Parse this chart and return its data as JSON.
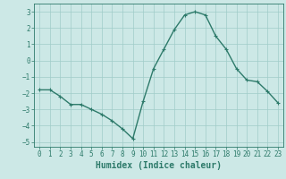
{
  "x": [
    0,
    1,
    2,
    3,
    4,
    5,
    6,
    7,
    8,
    9,
    10,
    11,
    12,
    13,
    14,
    15,
    16,
    17,
    18,
    19,
    20,
    21,
    22,
    23
  ],
  "y": [
    -1.8,
    -1.8,
    -2.2,
    -2.7,
    -2.7,
    -3.0,
    -3.3,
    -3.7,
    -4.2,
    -4.8,
    -2.5,
    -0.5,
    0.7,
    1.9,
    2.8,
    3.0,
    2.8,
    1.5,
    0.7,
    -0.5,
    -1.2,
    -1.3,
    -1.9,
    -2.6
  ],
  "line_color": "#2d7a6a",
  "marker": "+",
  "marker_size": 3,
  "linewidth": 1.0,
  "background_color": "#cce8e6",
  "grid_color": "#a0ccc9",
  "xlabel": "Humidex (Indice chaleur)",
  "xlim": [
    -0.5,
    23.5
  ],
  "ylim": [
    -5.3,
    3.5
  ],
  "yticks": [
    -5,
    -4,
    -3,
    -2,
    -1,
    0,
    1,
    2,
    3
  ],
  "xticks": [
    0,
    1,
    2,
    3,
    4,
    5,
    6,
    7,
    8,
    9,
    10,
    11,
    12,
    13,
    14,
    15,
    16,
    17,
    18,
    19,
    20,
    21,
    22,
    23
  ],
  "tick_fontsize": 5.5,
  "xlabel_fontsize": 7.0,
  "color": "#2d7a6a"
}
